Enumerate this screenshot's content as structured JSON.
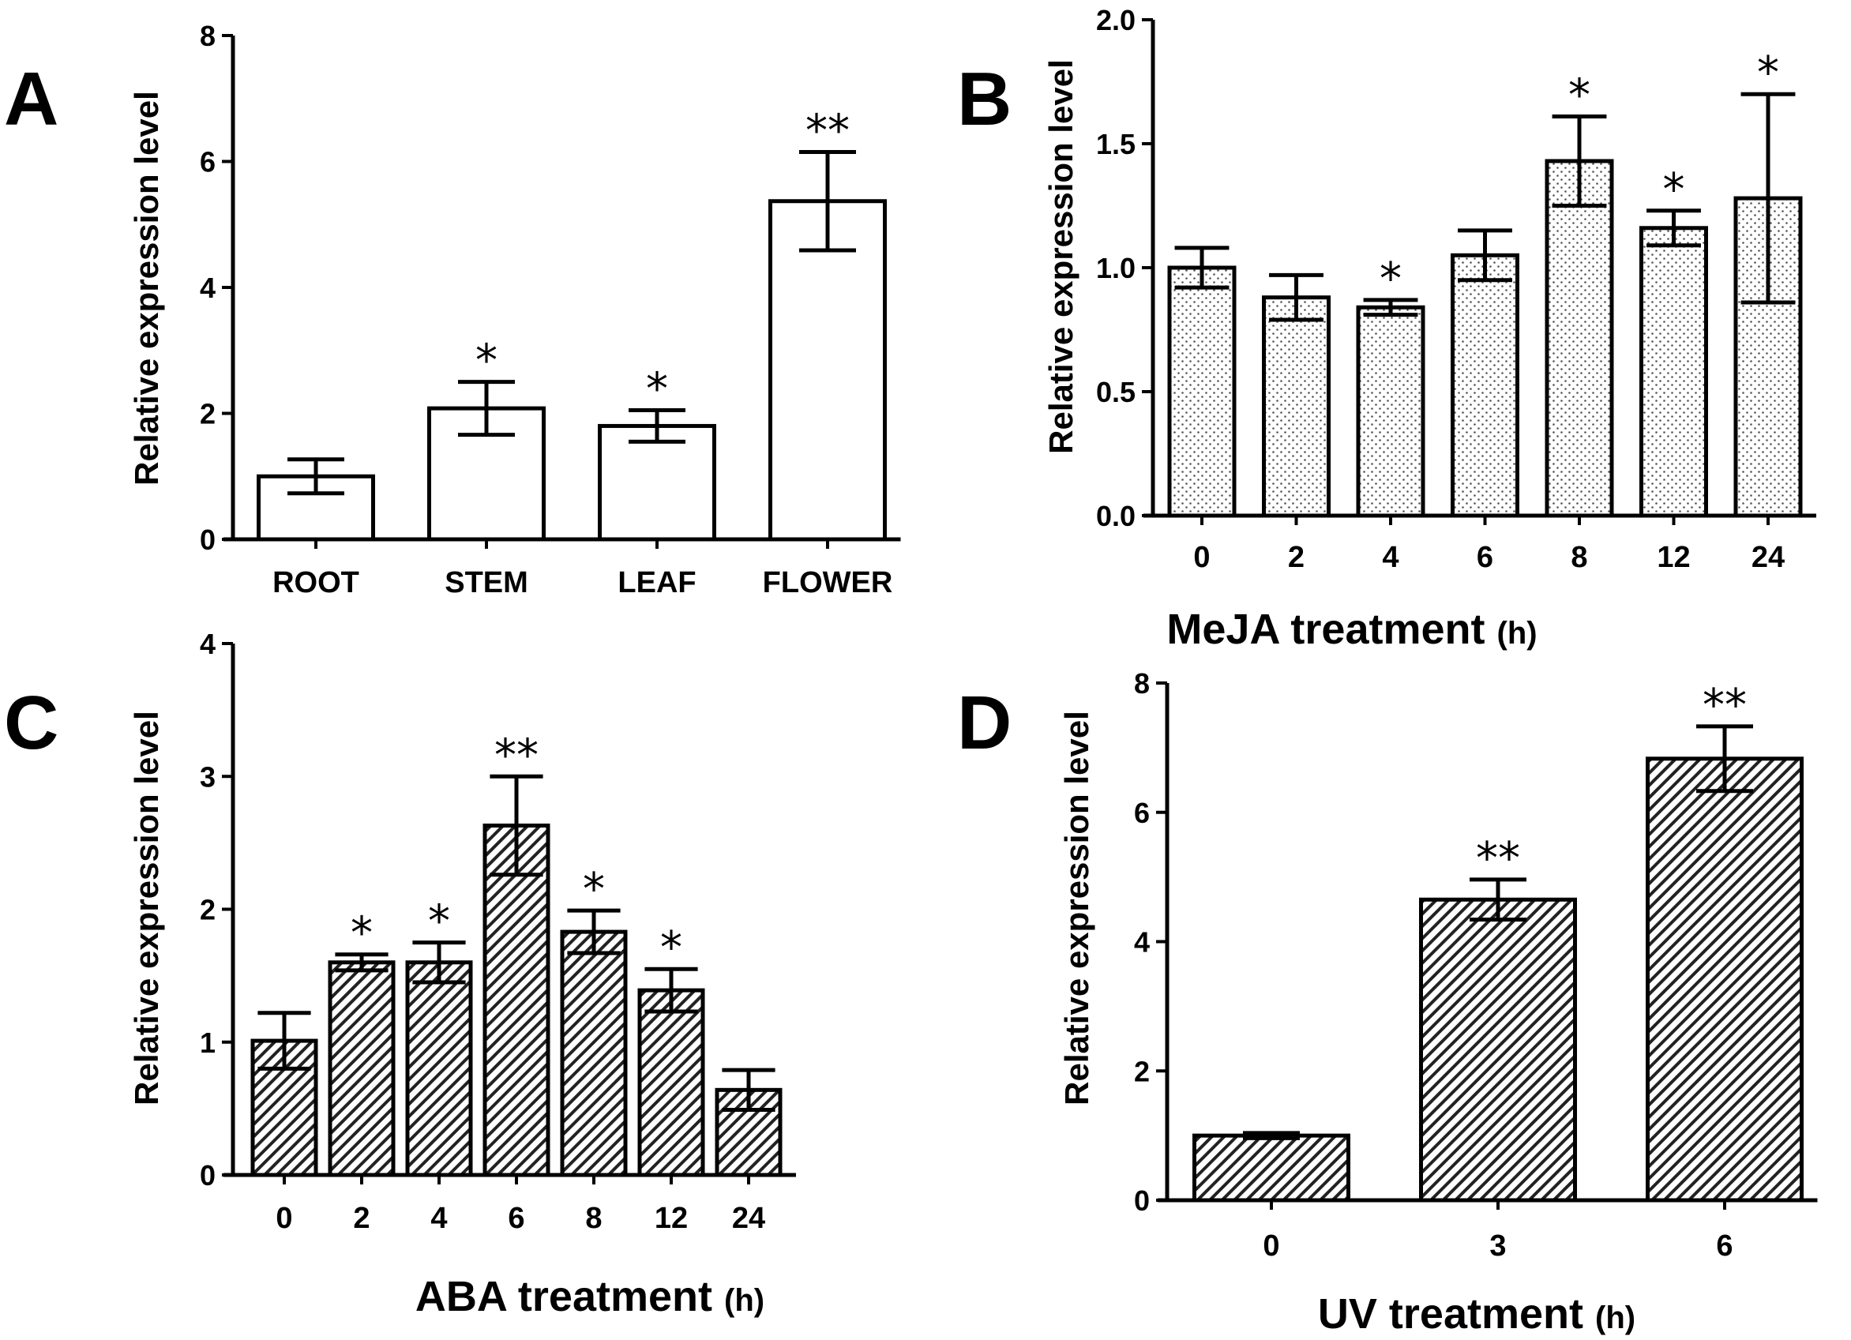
{
  "figure": {
    "colors": {
      "ink": "#000000",
      "bar_fill": "#ffffff"
    }
  },
  "chart_data": [
    {
      "panel": "A",
      "type": "bar",
      "fill_pattern": "none",
      "categories": [
        "ROOT",
        "STEM",
        "LEAF",
        "FLOWER"
      ],
      "values": [
        1.0,
        2.08,
        1.8,
        5.37
      ],
      "errors": [
        0.27,
        0.42,
        0.25,
        0.78
      ],
      "significance": [
        "",
        "*",
        "*",
        "**"
      ],
      "ylabel": "Relative expression level",
      "xlabel": "",
      "xlabel_unit": "",
      "ylim": [
        0,
        8
      ],
      "yticks": [
        "0",
        "2",
        "4",
        "6",
        "8"
      ],
      "ytick_values": [
        0,
        2,
        4,
        6,
        8
      ]
    },
    {
      "panel": "B",
      "type": "bar",
      "fill_pattern": "dots",
      "categories": [
        "0",
        "2",
        "4",
        "6",
        "8",
        "12",
        "24"
      ],
      "values": [
        1.0,
        0.88,
        0.84,
        1.05,
        1.43,
        1.16,
        1.28
      ],
      "errors": [
        0.08,
        0.09,
        0.03,
        0.1,
        0.18,
        0.07,
        0.42
      ],
      "significance": [
        "",
        "",
        "*",
        "",
        "*",
        "*",
        "*"
      ],
      "ylabel": "Relative expression level",
      "xlabel": "MeJA treatment",
      "xlabel_unit": "(h)",
      "ylim": [
        0,
        2.0
      ],
      "yticks": [
        "0.0",
        "0.5",
        "1.0",
        "1.5",
        "2.0"
      ],
      "ytick_values": [
        0,
        0.5,
        1.0,
        1.5,
        2.0
      ]
    },
    {
      "panel": "C",
      "type": "bar",
      "fill_pattern": "hatch",
      "categories": [
        "0",
        "2",
        "4",
        "6",
        "8",
        "12",
        "24"
      ],
      "values": [
        1.01,
        1.6,
        1.6,
        2.63,
        1.83,
        1.39,
        0.64
      ],
      "errors": [
        0.21,
        0.06,
        0.15,
        0.37,
        0.16,
        0.16,
        0.15
      ],
      "significance": [
        "",
        "*",
        "*",
        "**",
        "*",
        "*",
        ""
      ],
      "ylabel": "Relative expression level",
      "xlabel": "ABA treatment",
      "xlabel_unit": "(h)",
      "ylim": [
        0,
        4
      ],
      "yticks": [
        "0",
        "1",
        "2",
        "3",
        "4"
      ],
      "ytick_values": [
        0,
        1,
        2,
        3,
        4
      ]
    },
    {
      "panel": "D",
      "type": "bar",
      "fill_pattern": "hatch",
      "categories": [
        "0",
        "3",
        "6"
      ],
      "values": [
        1.0,
        4.65,
        6.83
      ],
      "errors": [
        0.04,
        0.31,
        0.5
      ],
      "significance": [
        "",
        "**",
        "**"
      ],
      "ylabel": "Relative expression level",
      "xlabel": "UV treatment",
      "xlabel_unit": "(h)",
      "ylim": [
        0,
        8
      ],
      "yticks": [
        "0",
        "2",
        "4",
        "6",
        "8"
      ],
      "ytick_values": [
        0,
        2,
        4,
        6,
        8
      ]
    }
  ]
}
